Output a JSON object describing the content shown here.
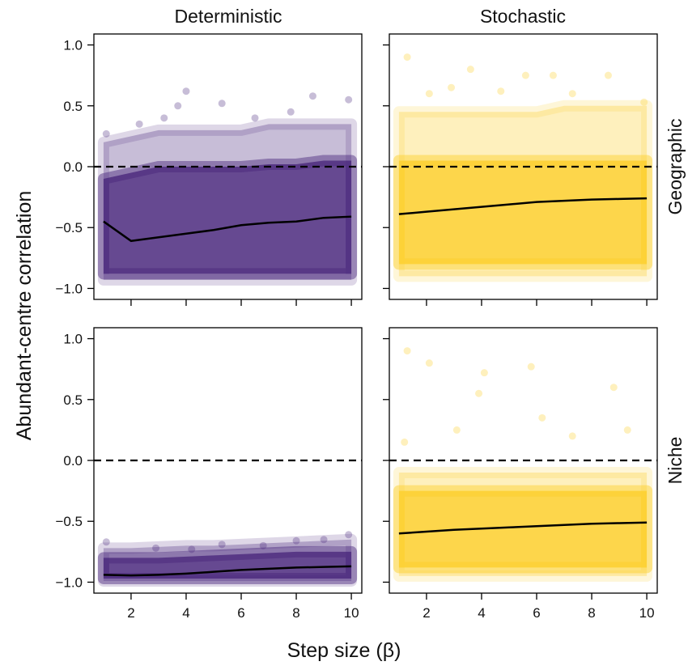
{
  "figure": {
    "xlabel": "Step size (β)",
    "ylabel": "Abundant-centre correlation",
    "columns": [
      "Deterministic",
      "Stochastic"
    ],
    "rows": [
      "Geographic",
      "Niche"
    ]
  },
  "chart_data": [
    {
      "type": "scatter",
      "color": "#46237a",
      "xlim": [
        0.65,
        10.38
      ],
      "ylim": [
        -1.09,
        1.09
      ],
      "xticks": [
        2,
        4,
        6,
        8,
        10
      ],
      "yticks": [
        {
          "value": -1,
          "label": "−1.0"
        },
        {
          "value": -0.5,
          "label": "−0.5"
        },
        {
          "value": 0,
          "label": "0.0"
        },
        {
          "value": 0.5,
          "label": "0.5"
        },
        {
          "value": 1,
          "label": "1.0"
        }
      ],
      "refline": 0,
      "x": [
        1,
        2,
        3,
        4,
        5,
        6,
        7,
        8,
        9,
        10
      ],
      "cloud_outer_high": [
        0.2,
        0.25,
        0.3,
        0.3,
        0.3,
        0.3,
        0.35,
        0.35,
        0.35,
        0.35
      ],
      "cloud_outer_low": [
        -0.93,
        -0.93,
        -0.93,
        -0.93,
        -0.93,
        -0.93,
        -0.93,
        -0.93,
        -0.93,
        -0.93
      ],
      "cloud_high": [
        -0.1,
        -0.05,
        0,
        0,
        0,
        0,
        0.02,
        0.02,
        0.05,
        0.05
      ],
      "cloud_low": [
        -0.88,
        -0.88,
        -0.88,
        -0.88,
        -0.88,
        -0.88,
        -0.88,
        -0.88,
        -0.88,
        -0.88
      ],
      "smooth": [
        -0.45,
        -0.61,
        -0.58,
        -0.55,
        -0.52,
        -0.48,
        -0.46,
        -0.45,
        -0.42,
        -0.41
      ],
      "points": {
        "x": [
          2.3,
          3.2,
          4,
          5.3,
          6.5,
          7.8,
          8.6,
          9.9,
          1.1,
          3.7
        ],
        "y": [
          0.35,
          0.4,
          0.62,
          0.52,
          0.4,
          0.45,
          0.58,
          0.55,
          0.27,
          0.5
        ]
      }
    },
    {
      "type": "scatter",
      "color": "#fcce25",
      "xlim": [
        0.65,
        10.38
      ],
      "ylim": [
        -1.09,
        1.09
      ],
      "xticks": [
        2,
        4,
        6,
        8,
        10
      ],
      "yticks": [
        {
          "value": -1,
          "label": "−1.0"
        },
        {
          "value": -0.5,
          "label": "−0.5"
        },
        {
          "value": 0,
          "label": "0.0"
        },
        {
          "value": 0.5,
          "label": "0.5"
        },
        {
          "value": 1,
          "label": "1.0"
        }
      ],
      "refline": 0,
      "x": [
        1,
        2,
        3,
        4,
        5,
        6,
        7,
        8,
        9,
        10
      ],
      "cloud_outer_high": [
        0.45,
        0.45,
        0.45,
        0.45,
        0.45,
        0.45,
        0.5,
        0.5,
        0.5,
        0.5
      ],
      "cloud_outer_low": [
        -0.9,
        -0.9,
        -0.9,
        -0.9,
        -0.9,
        -0.9,
        -0.9,
        -0.9,
        -0.9,
        -0.9
      ],
      "cloud_high": [
        0.05,
        0.05,
        0.05,
        0.05,
        0.05,
        0.05,
        0.05,
        0.05,
        0.05,
        0.05
      ],
      "cloud_low": [
        -0.8,
        -0.8,
        -0.8,
        -0.8,
        -0.8,
        -0.8,
        -0.8,
        -0.8,
        -0.8,
        -0.8
      ],
      "smooth": [
        -0.39,
        -0.37,
        -0.35,
        -0.33,
        -0.31,
        -0.29,
        -0.28,
        -0.27,
        -0.265,
        -0.26
      ],
      "points": {
        "x": [
          1.3,
          2.1,
          3.6,
          5.6,
          6.6,
          8.6,
          9.9,
          4.7,
          7.3,
          2.9
        ],
        "y": [
          0.9,
          0.6,
          0.8,
          0.75,
          0.75,
          0.75,
          0.53,
          0.62,
          0.6,
          0.65
        ]
      }
    },
    {
      "type": "scatter",
      "color": "#46237a",
      "xlim": [
        0.65,
        10.38
      ],
      "ylim": [
        -1.09,
        1.09
      ],
      "xticks": [
        2,
        4,
        6,
        8,
        10
      ],
      "yticks": [
        {
          "value": -1,
          "label": "−1.0"
        },
        {
          "value": -0.5,
          "label": "−0.5"
        },
        {
          "value": 0,
          "label": "0.0"
        },
        {
          "value": 0.5,
          "label": "0.5"
        },
        {
          "value": 1,
          "label": "1.0"
        }
      ],
      "refline": 0,
      "x": [
        1,
        2,
        3,
        4,
        5,
        6,
        7,
        8,
        9,
        10
      ],
      "cloud_outer_high": [
        -0.72,
        -0.72,
        -0.71,
        -0.7,
        -0.7,
        -0.69,
        -0.68,
        -0.67,
        -0.66,
        -0.65
      ],
      "cloud_outer_low": [
        -0.99,
        -0.99,
        -0.99,
        -0.99,
        -0.99,
        -0.99,
        -0.99,
        -0.99,
        -0.99,
        -0.99
      ],
      "cloud_high": [
        -0.8,
        -0.8,
        -0.8,
        -0.79,
        -0.78,
        -0.77,
        -0.76,
        -0.75,
        -0.75,
        -0.75
      ],
      "cloud_low": [
        -0.97,
        -0.97,
        -0.97,
        -0.97,
        -0.97,
        -0.97,
        -0.97,
        -0.97,
        -0.97,
        -0.97
      ],
      "smooth": [
        -0.94,
        -0.945,
        -0.94,
        -0.93,
        -0.915,
        -0.9,
        -0.89,
        -0.88,
        -0.875,
        -0.87
      ],
      "points": {
        "x": [
          1.1,
          2.9,
          5.3,
          8,
          9.9,
          6.8,
          4.2,
          9
        ],
        "y": [
          -0.67,
          -0.72,
          -0.69,
          -0.66,
          -0.61,
          -0.7,
          -0.73,
          -0.65
        ]
      }
    },
    {
      "type": "scatter",
      "color": "#fcce25",
      "xlim": [
        0.65,
        10.38
      ],
      "ylim": [
        -1.09,
        1.09
      ],
      "xticks": [
        2,
        4,
        6,
        8,
        10
      ],
      "yticks": [
        {
          "value": -1,
          "label": "−1.0"
        },
        {
          "value": -0.5,
          "label": "−0.5"
        },
        {
          "value": 0,
          "label": "0.0"
        },
        {
          "value": 0.5,
          "label": "0.5"
        },
        {
          "value": 1,
          "label": "1.0"
        }
      ],
      "refline": 0,
      "x": [
        1,
        2,
        3,
        4,
        5,
        6,
        7,
        8,
        9,
        10
      ],
      "cloud_outer_high": [
        -0.1,
        -0.1,
        -0.1,
        -0.1,
        -0.1,
        -0.1,
        -0.1,
        -0.1,
        -0.1,
        -0.1
      ],
      "cloud_outer_low": [
        -0.95,
        -0.95,
        -0.95,
        -0.95,
        -0.95,
        -0.95,
        -0.95,
        -0.95,
        -0.95,
        -0.95
      ],
      "cloud_high": [
        -0.25,
        -0.25,
        -0.25,
        -0.25,
        -0.25,
        -0.25,
        -0.25,
        -0.25,
        -0.25,
        -0.25
      ],
      "cloud_low": [
        -0.88,
        -0.88,
        -0.88,
        -0.88,
        -0.88,
        -0.88,
        -0.88,
        -0.88,
        -0.88,
        -0.88
      ],
      "smooth": [
        -0.6,
        -0.585,
        -0.57,
        -0.56,
        -0.55,
        -0.54,
        -0.53,
        -0.52,
        -0.515,
        -0.51
      ],
      "points": {
        "x": [
          1.3,
          2.1,
          4.1,
          3.9,
          5.8,
          8.8,
          6.2,
          7.3,
          9.3,
          1.2,
          3.1
        ],
        "y": [
          0.9,
          0.8,
          0.72,
          0.55,
          0.77,
          0.6,
          0.35,
          0.2,
          0.25,
          0.15,
          0.25
        ]
      }
    }
  ]
}
